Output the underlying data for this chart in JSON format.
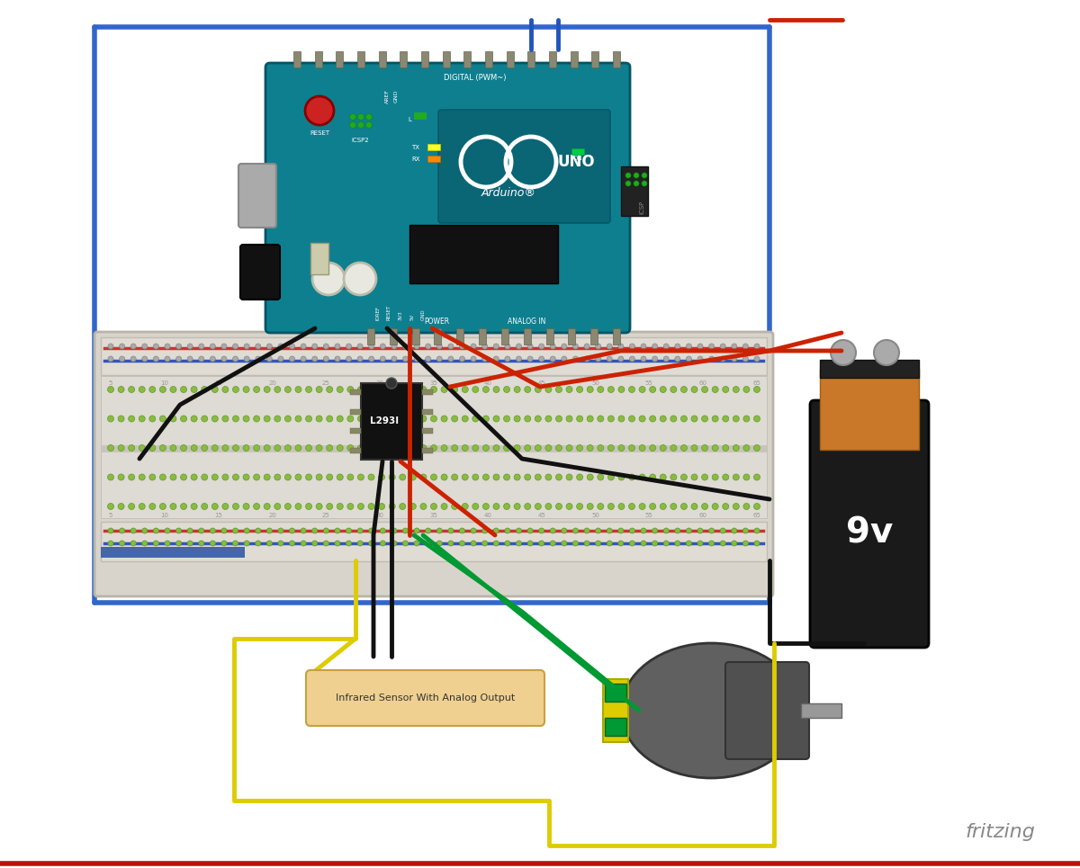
{
  "bg_color": "#ffffff",
  "fritzing_text": "fritzing",
  "fritzing_color": "#888888",
  "fig_width": 12.0,
  "fig_height": 9.65,
  "ir_sensor_label": "Infrared Sensor With Analog Output",
  "ic_label": "L293I",
  "colors": {
    "arduino_teal": "#0e7f8f",
    "arduino_dark": "#005566",
    "breadboard_bg": "#d8d4cc",
    "breadboard_edge": "#b8b4a8",
    "battery_dark": "#1a1a1a",
    "battery_orange": "#c87828",
    "motor_gray": "#606060",
    "ic_black": "#1a1a1a",
    "wire_black": "#111111",
    "wire_red": "#cc2200",
    "wire_green": "#009933",
    "wire_yellow": "#ddcc00",
    "wire_blue": "#2255bb",
    "border_blue": "#3366cc",
    "ir_box_fill": "#f0d090",
    "ir_box_edge": "#c8a040"
  }
}
